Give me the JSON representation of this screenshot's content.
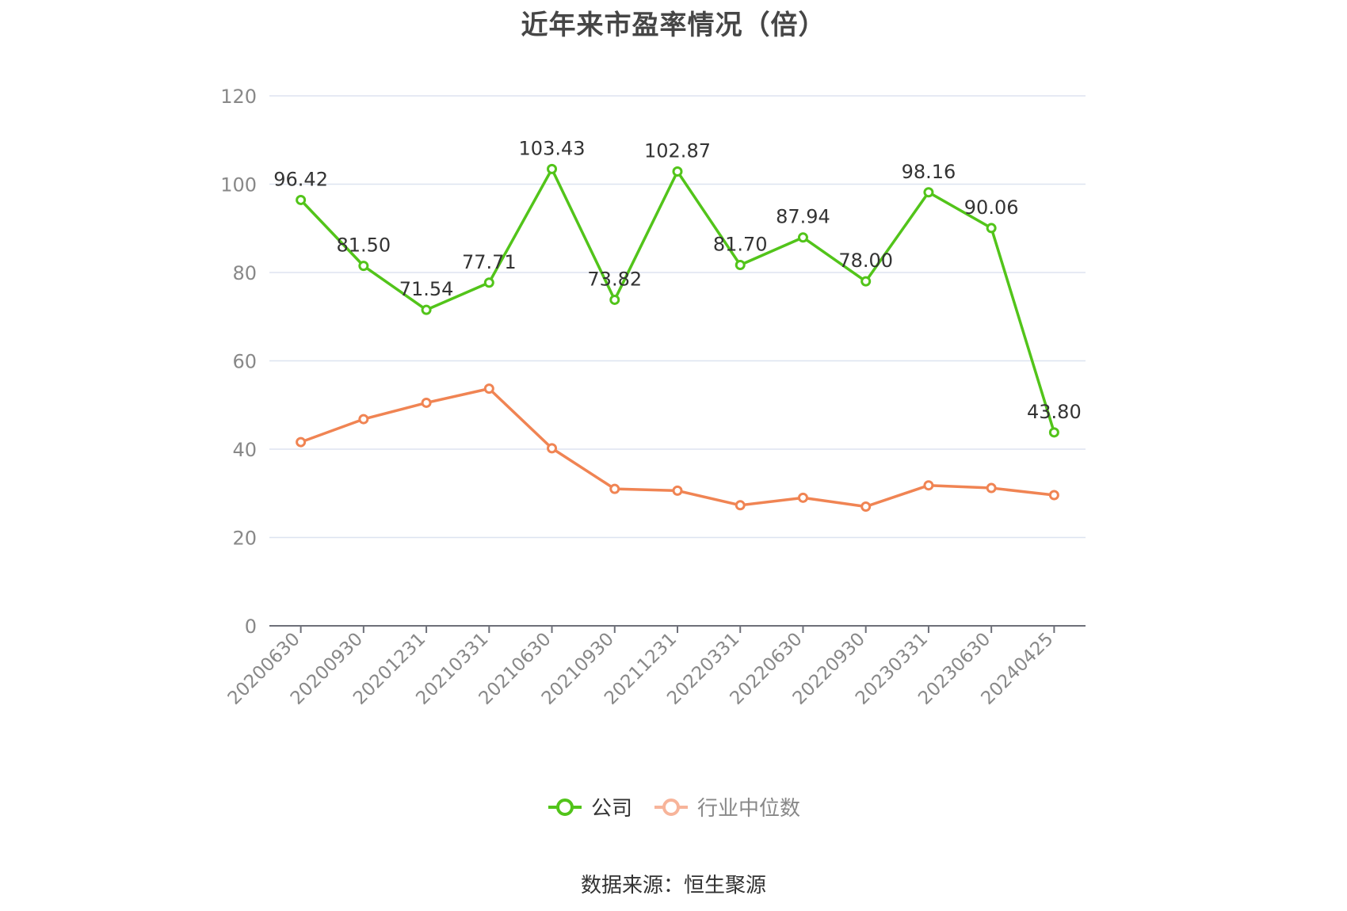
{
  "chart_data": {
    "type": "line",
    "title": "近年来市盈率情况（倍）",
    "categories": [
      "20200630",
      "20200930",
      "20201231",
      "20210331",
      "20210630",
      "20210930",
      "20211231",
      "20220331",
      "20220630",
      "20220930",
      "20230331",
      "20230630",
      "20240425"
    ],
    "series": [
      {
        "name": "公司",
        "color": "#52c41a",
        "values": [
          96.42,
          81.5,
          71.54,
          77.71,
          103.43,
          73.82,
          102.87,
          81.7,
          87.94,
          78.0,
          98.16,
          90.06,
          43.8
        ],
        "labels": [
          "96.42",
          "81.50",
          "71.54",
          "77.71",
          "103.43",
          "73.82",
          "102.87",
          "81.70",
          "87.94",
          "78.00",
          "98.16",
          "90.06",
          "43.80"
        ],
        "show_labels": true
      },
      {
        "name": "行业中位数",
        "color": "#f08453",
        "legend_color": "#f7b49a",
        "values": [
          41.6,
          46.8,
          50.5,
          53.7,
          40.2,
          31.0,
          30.6,
          27.3,
          29.0,
          27.0,
          31.8,
          31.2,
          29.6
        ],
        "show_labels": false
      }
    ],
    "yticks": [
      "0",
      "20",
      "40",
      "60",
      "80",
      "100",
      "120"
    ],
    "ylim": [
      0,
      120
    ],
    "grid": true,
    "legend_position": "bottom-center",
    "source": "数据来源：恒生聚源"
  }
}
